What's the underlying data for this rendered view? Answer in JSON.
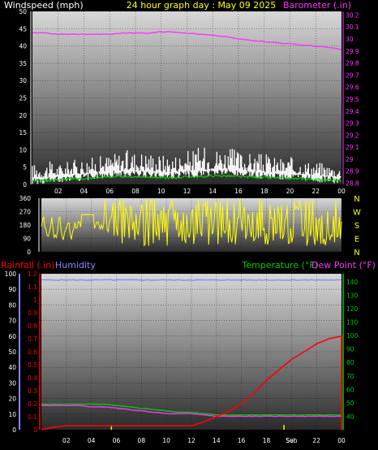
{
  "header": {
    "left": "Windspeed (mph)",
    "center": "24 hour graph day : May 09 2025",
    "right": "Barometer (.in)"
  },
  "colors": {
    "wind": "#ffffff",
    "gust": "#00cc00",
    "baro": "#ff33ff",
    "dir": "#ffff00",
    "rain": "#ff0000",
    "humidity": "#8888ff",
    "temp": "#00cc00",
    "dew": "#ff33ff",
    "header": "#ffff00",
    "axis": "#ffffff"
  },
  "x_labels": [
    "02",
    "04",
    "06",
    "08",
    "10",
    "12",
    "14",
    "16",
    "18",
    "20",
    "22",
    "00"
  ],
  "x_labels_bottom": [
    "02",
    "04",
    "06",
    "08",
    "10",
    "12",
    "14",
    "16",
    "18",
    "Sun",
    "22",
    "00"
  ],
  "markers": {
    "sunrise": "Sun",
    "sunset": "Set"
  },
  "chart_data": [
    {
      "type": "line",
      "name": "wind-barometer",
      "x": [
        0,
        1,
        2,
        3,
        4,
        5,
        6,
        7,
        8,
        9,
        10,
        11,
        12,
        13,
        14,
        15,
        16,
        17,
        18,
        19,
        20,
        21,
        22,
        23,
        24
      ],
      "series": [
        {
          "name": "Windspeed",
          "axis": "left",
          "values": [
            2,
            2,
            2.5,
            3,
            3,
            3.5,
            4,
            4,
            4,
            4,
            3.5,
            3.5,
            4,
            4,
            4.5,
            4.5,
            4,
            4,
            3.5,
            3.5,
            3,
            3,
            2.5,
            2.5,
            2
          ]
        },
        {
          "name": "Windspeed gust",
          "axis": "left",
          "values": [
            6,
            7,
            6,
            7,
            8,
            8,
            9,
            10,
            10,
            10,
            9,
            9,
            10,
            11,
            11,
            11,
            10,
            9,
            9,
            8,
            8,
            7,
            7,
            6,
            5
          ]
        },
        {
          "name": "Barometer",
          "axis": "right",
          "values": [
            30.05,
            30.05,
            30.04,
            30.04,
            30.04,
            30.04,
            30.04,
            30.05,
            30.05,
            30.05,
            30.06,
            30.06,
            30.05,
            30.04,
            30.03,
            30.02,
            30.0,
            29.99,
            29.98,
            29.97,
            29.96,
            29.95,
            29.94,
            29.93,
            29.91
          ]
        }
      ],
      "ylim_left": [
        0,
        50
      ],
      "left_ticks": [
        0,
        5,
        10,
        15,
        20,
        25,
        30,
        35,
        40,
        45,
        50
      ],
      "ylim_right": [
        28.79,
        30.23
      ],
      "right_ticks": [
        "28.8",
        "28.9",
        "29",
        "29.1",
        "29.2",
        "29.3",
        "29.4",
        "29.5",
        "29.6",
        "29.7",
        "29.8",
        "29.9",
        "30",
        "30.1",
        "30.2"
      ]
    },
    {
      "type": "scatter",
      "name": "wind-direction",
      "ylim": [
        0,
        360
      ],
      "left_ticks": [
        0,
        90,
        180,
        270,
        360
      ],
      "compass": [
        "N",
        "W",
        "S",
        "E",
        "N"
      ]
    },
    {
      "type": "line",
      "name": "rain-humidity-temp",
      "legend_left": "Rainfall (.in)",
      "legend_left2": "Humidity",
      "legend_right": "Temperature (°F)",
      "legend_right2": "Dew Point (°F)",
      "x": [
        0,
        1,
        2,
        3,
        4,
        5,
        6,
        7,
        8,
        9,
        10,
        11,
        12,
        13,
        14,
        15,
        16,
        17,
        18,
        19,
        20,
        21,
        22,
        23,
        24
      ],
      "series": [
        {
          "name": "Rainfall",
          "axis": "rain",
          "values": [
            0.0,
            0.02,
            0.03,
            0.03,
            0.03,
            0.03,
            0.03,
            0.03,
            0.03,
            0.03,
            0.03,
            0.03,
            0.03,
            0.06,
            0.1,
            0.14,
            0.2,
            0.28,
            0.38,
            0.46,
            0.54,
            0.6,
            0.66,
            0.7,
            0.72
          ]
        },
        {
          "name": "Humidity",
          "axis": "humidity",
          "values": [
            96,
            96,
            96,
            96,
            96,
            96,
            96,
            96,
            96,
            96,
            96,
            96,
            96,
            96,
            96,
            96,
            96,
            96,
            96,
            96,
            96,
            96,
            96,
            96,
            96
          ]
        },
        {
          "name": "Temperature",
          "axis": "temp",
          "values": [
            49,
            49,
            49,
            49,
            49,
            49,
            48,
            47,
            46,
            45,
            44,
            43,
            43,
            42,
            41,
            41,
            41,
            41,
            41,
            41,
            41,
            41,
            41,
            41,
            41
          ]
        },
        {
          "name": "Dew Point",
          "axis": "temp",
          "values": [
            48,
            48,
            48,
            48,
            47,
            47,
            46,
            45,
            44,
            43,
            42,
            42,
            42,
            41,
            40,
            40,
            40,
            40,
            40,
            40,
            40,
            40,
            40,
            40,
            40
          ]
        }
      ],
      "humidity_lim": [
        0,
        100
      ],
      "humidity_ticks": [
        0,
        10,
        20,
        30,
        40,
        50,
        60,
        70,
        80,
        90,
        100
      ],
      "rain_lim": [
        0,
        1.2
      ],
      "rain_ticks": [
        "0",
        "0.1",
        "0.2",
        "0.3",
        "0.4",
        "0.5",
        "0.6",
        "0.7",
        "0.8",
        "0.9",
        "1",
        "1.1",
        "1.2"
      ],
      "temp_lim": [
        30,
        146
      ],
      "temp_ticks": [
        40,
        50,
        60,
        70,
        80,
        90,
        100,
        110,
        120,
        130,
        140
      ]
    }
  ]
}
